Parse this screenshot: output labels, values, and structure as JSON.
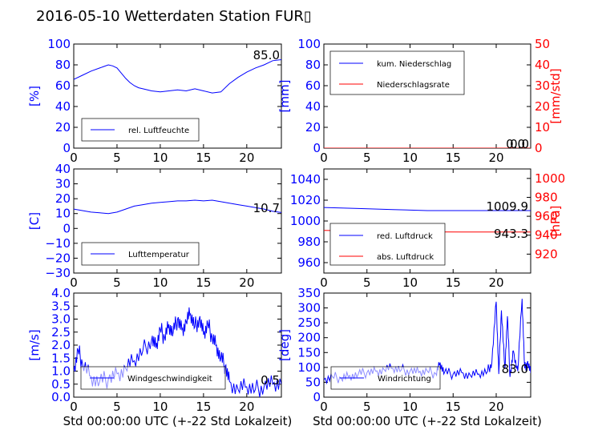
{
  "title": "2016-05-10 Wetterdaten Station FUR▯",
  "colors": {
    "blue": "#0000ff",
    "red": "#ff0000",
    "lightblue": "#8080ff",
    "black": "#000000"
  },
  "chart_data": [
    {
      "id": "humidity",
      "type": "line",
      "xlim": [
        0,
        24
      ],
      "ylim": [
        0,
        100
      ],
      "xticks": [
        "0",
        "5",
        "10",
        "15",
        "20"
      ],
      "yticks": [
        "0",
        "20",
        "40",
        "60",
        "80",
        "100"
      ],
      "ylabel": "[%]",
      "legend": {
        "placement": "lower-left",
        "entries": [
          "rel. Luftfeuchte"
        ]
      },
      "value_label": "85.0",
      "series": [
        {
          "name": "rel. Luftfeuchte",
          "color": "#0000ff",
          "x": [
            0,
            1,
            2,
            3,
            4,
            4.5,
            5,
            5.5,
            6,
            6.5,
            7,
            7.5,
            8,
            9,
            10,
            11,
            12,
            13,
            14,
            15,
            16,
            17,
            18,
            19,
            20,
            21,
            22,
            23,
            24
          ],
          "y": [
            66,
            70,
            74,
            77,
            80,
            79,
            77,
            72,
            67,
            63,
            60,
            58,
            57,
            55,
            54,
            55,
            56,
            55,
            57,
            55,
            53,
            54,
            62,
            68,
            73,
            77,
            80,
            84,
            85
          ]
        }
      ]
    },
    {
      "id": "precip",
      "type": "line",
      "xlim": [
        0,
        24
      ],
      "ylim": [
        0,
        100
      ],
      "y2lim": [
        0,
        50
      ],
      "xticks": [
        "0",
        "5",
        "10",
        "15",
        "20"
      ],
      "yticks": [
        "0",
        "20",
        "40",
        "60",
        "80",
        "100"
      ],
      "y2ticks": [
        "0",
        "10",
        "20",
        "30",
        "40",
        "50"
      ],
      "ylabel": "[mm]",
      "y2label": "[mm/std]",
      "legend": {
        "placement": "upper-left",
        "entries": [
          "kum. Niederschlag",
          "Niederschlagsrate"
        ]
      },
      "value_label": "0.0",
      "value_label2": "0.0",
      "series": [
        {
          "name": "kum. Niederschlag",
          "color": "#0000ff",
          "axis": "y",
          "x": [
            0,
            24
          ],
          "y": [
            0,
            0
          ]
        },
        {
          "name": "Niederschlagsrate",
          "color": "#ff0000",
          "axis": "y2",
          "x": [
            0,
            24
          ],
          "y": [
            0,
            0
          ]
        }
      ]
    },
    {
      "id": "temperature",
      "type": "line",
      "xlim": [
        0,
        24
      ],
      "ylim": [
        -30,
        40
      ],
      "xticks": [
        "0",
        "5",
        "10",
        "15",
        "20"
      ],
      "yticks": [
        "−30",
        "−20",
        "−10",
        "0",
        "10",
        "20",
        "30",
        "40"
      ],
      "ylabel": "[C]",
      "legend": {
        "placement": "lower-left",
        "entries": [
          "Lufttemperatur"
        ]
      },
      "value_label": "10.7",
      "series": [
        {
          "name": "Lufttemperatur",
          "color": "#0000ff",
          "x": [
            0,
            1,
            2,
            3,
            4,
            5,
            6,
            7,
            8,
            9,
            10,
            11,
            12,
            13,
            14,
            15,
            16,
            17,
            18,
            19,
            20,
            21,
            22,
            23,
            24
          ],
          "y": [
            13,
            12,
            11,
            10.5,
            10,
            11,
            13,
            15,
            16,
            17,
            17.5,
            18,
            18.5,
            18.5,
            19,
            18.5,
            19,
            18,
            17,
            16,
            15,
            14,
            13,
            11.5,
            10.7
          ]
        }
      ]
    },
    {
      "id": "pressure",
      "type": "line",
      "xlim": [
        0,
        24
      ],
      "ylim": [
        950,
        1050
      ],
      "y2lim": [
        900,
        1010
      ],
      "xticks": [
        "0",
        "5",
        "10",
        "15",
        "20"
      ],
      "yticks": [
        "960",
        "980",
        "1000",
        "1020",
        "1040"
      ],
      "y2ticks": [
        "920",
        "940",
        "960",
        "980",
        "1000"
      ],
      "y2label": "[hPa]",
      "legend": {
        "placement": "lower-left",
        "entries": [
          "red. Luftdruck",
          "abs. Luftdruck"
        ]
      },
      "value_label": "1009.9",
      "value_label2": "943.3",
      "series": [
        {
          "name": "red. Luftdruck",
          "color": "#0000ff",
          "axis": "y",
          "x": [
            0,
            4,
            8,
            12,
            16,
            20,
            24
          ],
          "y": [
            1013,
            1012,
            1011,
            1010,
            1010,
            1010,
            1010
          ]
        },
        {
          "name": "abs. Luftdruck",
          "color": "#ff0000",
          "axis": "y2",
          "x": [
            0,
            4,
            8,
            12,
            16,
            20,
            24
          ],
          "y": [
            945,
            944.5,
            944,
            943.5,
            943.3,
            943.3,
            943.3
          ]
        }
      ]
    },
    {
      "id": "wind",
      "type": "line",
      "xlim": [
        0,
        24
      ],
      "ylim": [
        0,
        4
      ],
      "xticks": [
        "0",
        "5",
        "10",
        "15",
        "20"
      ],
      "yticks": [
        "0.0",
        "0.5",
        "1.0",
        "1.5",
        "2.0",
        "2.5",
        "3.0",
        "3.5",
        "4.0"
      ],
      "ylabel": "[m/s]",
      "xlabel": "Std 00:00:00 UTC (+-22 Std Lokalzeit)",
      "legend": {
        "placement": "lower-left",
        "entries": [
          "Windgeschwindigkeit"
        ]
      },
      "value_label": "0.5",
      "series": [
        {
          "name": "Windgeschwindigkeit",
          "color": "#0000ff",
          "x": [
            0,
            0.5,
            1,
            2,
            3,
            4,
            5,
            6,
            7,
            8,
            9,
            9.5,
            10,
            10.5,
            11,
            11.5,
            12,
            12.5,
            13,
            13.5,
            14,
            14.5,
            15,
            15.5,
            16,
            16.5,
            17,
            17.5,
            18,
            19,
            20,
            21,
            22,
            23,
            24
          ],
          "y": [
            1.0,
            1.8,
            1.3,
            0.8,
            0.6,
            0.7,
            0.9,
            1.1,
            1.4,
            1.8,
            2.2,
            1.9,
            2.6,
            2.3,
            2.8,
            2.5,
            3.0,
            2.6,
            2.9,
            3.2,
            2.7,
            3.0,
            2.4,
            2.8,
            2.3,
            2.0,
            1.5,
            1.2,
            0.6,
            0.3,
            0.4,
            0.3,
            0.4,
            0.5,
            0.5
          ]
        }
      ]
    },
    {
      "id": "direction",
      "type": "line",
      "xlim": [
        0,
        24
      ],
      "ylim": [
        0,
        360
      ],
      "xticks": [
        "0",
        "5",
        "10",
        "15",
        "20"
      ],
      "yticks": [
        "0",
        "50",
        "100",
        "150",
        "200",
        "250",
        "300",
        "350"
      ],
      "ylabel": "[deg]",
      "xlabel": "Std 00:00:00 UTC (+-22 Std Lokalzeit)",
      "legend": {
        "placement": "lower-left",
        "entries": [
          "Windrichtung"
        ]
      },
      "value_label": "83.0",
      "series": [
        {
          "name": "Windrichtung",
          "color": "#0000ff",
          "x": [
            0,
            1,
            2,
            3,
            4,
            5,
            6,
            7,
            8,
            9,
            10,
            11,
            12,
            13,
            13.5,
            14,
            15,
            16,
            17,
            18,
            19,
            19.5,
            20,
            20.3,
            20.6,
            21,
            21.3,
            21.6,
            22,
            22.5,
            23,
            23.3,
            23.6,
            24
          ],
          "y": [
            60,
            70,
            65,
            75,
            80,
            85,
            90,
            95,
            100,
            95,
            90,
            85,
            90,
            80,
            120,
            85,
            80,
            85,
            75,
            80,
            90,
            120,
            330,
            80,
            300,
            100,
            280,
            70,
            160,
            90,
            340,
            100,
            120,
            83
          ]
        }
      ]
    }
  ]
}
